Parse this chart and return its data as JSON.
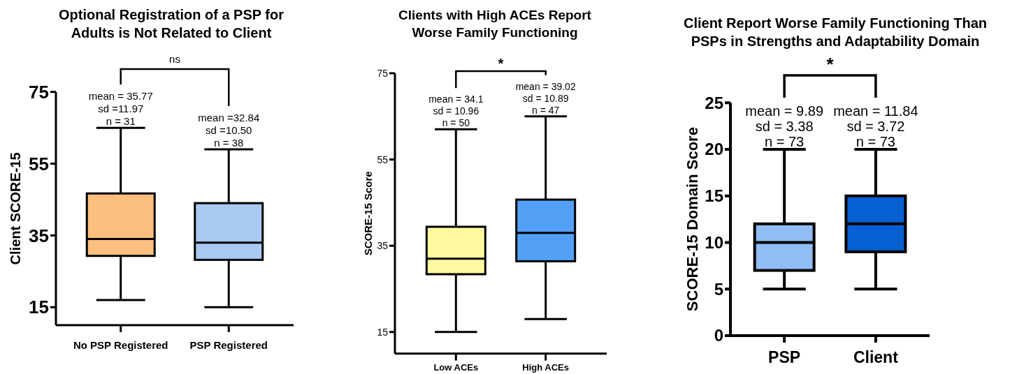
{
  "chart_data": [
    {
      "type": "box",
      "title": "Optional Registration of a PSP for Adults is Not Related to Client",
      "ylabel": "Client SCORE-15",
      "categories": [
        "No PSP Registered",
        "PSP Registered"
      ],
      "colors": [
        "#fdbf7e",
        "#a9c9f3"
      ],
      "boxes": [
        {
          "low": 17,
          "q1": 29.3,
          "median": 34,
          "q3": 46.7,
          "high": 65
        },
        {
          "low": 15,
          "q1": 28.2,
          "median": 33,
          "q3": 44,
          "high": 59
        }
      ],
      "ylim": [
        10,
        75
      ],
      "yticks": [
        15,
        35,
        55,
        75
      ],
      "grid": false,
      "annotations": [
        "ns",
        {
          "text": "mean = 35.77\nsd =11.97\nn = 31",
          "x": "No PSP Registered",
          "y": 65
        },
        {
          "text": "mean =32.84\nsd =10.50\nn = 38",
          "x": "PSP Registered",
          "y": 59
        }
      ]
    },
    {
      "type": "box",
      "title": "Clients with High ACEs Report Worse Family Functioning",
      "ylabel": "SCORE-15 Score",
      "categories": [
        "Low ACEs",
        "High ACEs"
      ],
      "colors": [
        "#fffaa0",
        "#55a0f7"
      ],
      "boxes": [
        {
          "low": 15,
          "q1": 28.4,
          "median": 32,
          "q3": 39.4,
          "high": 62
        },
        {
          "low": 18,
          "q1": 31.4,
          "median": 38,
          "q3": 45.7,
          "high": 65
        }
      ],
      "ylim": [
        10,
        75
      ],
      "yticks": [
        15,
        35,
        55,
        75
      ],
      "grid": false,
      "annotations": [
        "*",
        {
          "text": "mean = 34.1\nsd = 10.96\nn = 50",
          "x": "Low ACEs",
          "y": 62
        },
        {
          "text": "mean = 39.02\nsd = 10.89\nn = 47",
          "x": "High ACEs",
          "y": 65
        }
      ]
    },
    {
      "type": "box",
      "title": "Client Report Worse Family Functioning Than PSPs in Strengths and Adaptability Domain",
      "ylabel": "SCORE-15 Domain Score",
      "categories": [
        "PSP",
        "Client"
      ],
      "colors": [
        "#90bdf5",
        "#0760d2"
      ],
      "boxes": [
        {
          "low": 5,
          "q1": 7,
          "median": 10,
          "q3": 12,
          "high": 20
        },
        {
          "low": 5,
          "q1": 9,
          "median": 12,
          "q3": 15,
          "high": 20
        }
      ],
      "ylim": [
        0,
        25
      ],
      "yticks": [
        0,
        5,
        10,
        15,
        20,
        25
      ],
      "grid": false,
      "annotations": [
        "*",
        {
          "text": "mean = 9.89\nsd = 3.38\nn = 73",
          "x": "PSP",
          "y": 20
        },
        {
          "text": "mean = 11.84\nsd = 3.72\nn = 73",
          "x": "Client",
          "y": 20
        }
      ]
    }
  ]
}
